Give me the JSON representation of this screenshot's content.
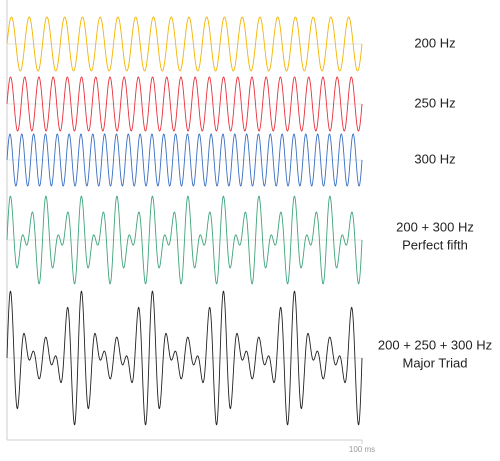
{
  "chart_data": {
    "type": "waveform",
    "xlim": [
      0,
      100
    ],
    "xticks": [
      {
        "value": 100,
        "label": "100 ms"
      }
    ],
    "series": [
      {
        "name": "200 Hz",
        "color": "#f4b400",
        "frequencies": [
          200
        ]
      },
      {
        "name": "250 Hz",
        "color": "#e8313b",
        "frequencies": [
          250
        ]
      },
      {
        "name": "300 Hz",
        "color": "#3a6fc4",
        "frequencies": [
          300
        ]
      },
      {
        "name": "200 + 300 Hz",
        "subtitle": "Perfect fifth",
        "color": "#3fa57a",
        "frequencies": [
          200,
          300
        ]
      },
      {
        "name": "200 + 250 + 300 Hz",
        "subtitle": "Major Triad",
        "color": "#222222",
        "frequencies": [
          200,
          250,
          300
        ]
      }
    ]
  }
}
